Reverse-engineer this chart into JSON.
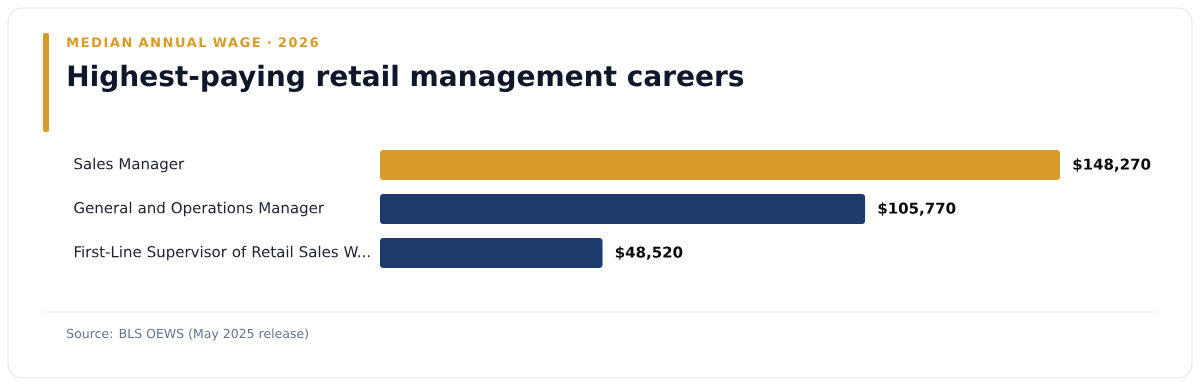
{
  "chart_data": {
    "type": "bar",
    "orientation": "horizontal",
    "subtitle": "MEDIAN ANNUAL WAGE · 2026",
    "title": "Highest-paying retail management careers",
    "categories": [
      "Sales Manager",
      "General and Operations Manager",
      "First-Line Supervisor of Retail Sales W..."
    ],
    "values": [
      148270,
      105770,
      48520
    ],
    "value_labels": [
      "$148,270",
      "$105,770",
      "$48,520"
    ],
    "colors": [
      "#d89a28",
      "#1c3a6b",
      "#1c3a6b"
    ],
    "annotations": [
      "Source: BLS OEWS (May 2025 release)"
    ]
  }
}
